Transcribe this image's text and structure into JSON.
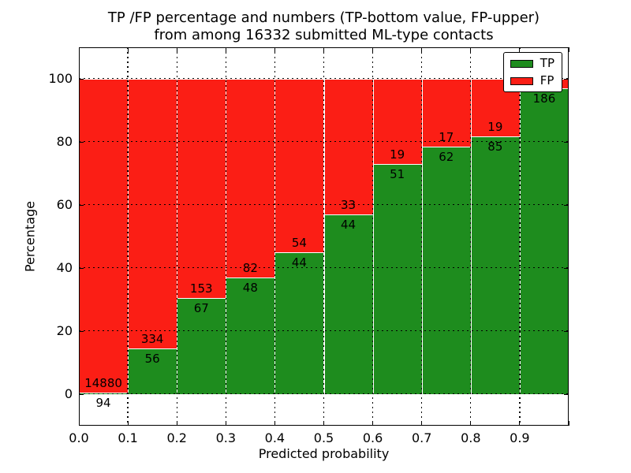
{
  "title": {
    "line1": "TP /FP percentage and numbers (TP-bottom value, FP-upper)",
    "line2": "from among 16332 submitted ML-type contacts"
  },
  "axes": {
    "xlabel": "Predicted probability",
    "ylabel": "Percentage"
  },
  "legend": {
    "items": [
      {
        "label": "TP",
        "color": "#1e8c1e"
      },
      {
        "label": "FP",
        "color": "#fb1e15"
      }
    ]
  },
  "chart_data": {
    "type": "bar",
    "stacked": true,
    "unit": "percent of bin (TP+FP = 100%)",
    "title": "TP /FP percentage and numbers (TP-bottom value, FP-upper)\nfrom among 16332 submitted ML-type contacts",
    "xlabel": "Predicted probability",
    "ylabel": "Percentage",
    "xlim": [
      0.0,
      1.0
    ],
    "ylim": [
      -10,
      110
    ],
    "grid": "dotted black, horizontal and vertical, on",
    "legend_position": "upper right",
    "bar_edge_color": "#ffffff",
    "colors": {
      "TP": "#1e8c1e",
      "FP": "#fb1e15"
    },
    "yticks": [
      "0",
      "20",
      "40",
      "60",
      "80",
      "100"
    ],
    "ytick_values": [
      0,
      20,
      40,
      60,
      80,
      100
    ],
    "xticks": [
      "0.0",
      "0.1",
      "0.2",
      "0.3",
      "0.4",
      "0.5",
      "0.6",
      "0.7",
      "0.8",
      "0.9"
    ],
    "bin_width": 0.1,
    "bars": [
      {
        "x0": 0.0,
        "x1": 0.1,
        "tp": 94,
        "fp": 14880,
        "tp_pct": 0.6,
        "tp_label": "94",
        "fp_label": "14880"
      },
      {
        "x0": 0.1,
        "x1": 0.2,
        "tp": 56,
        "fp": 334,
        "tp_pct": 14.4,
        "tp_label": "56",
        "fp_label": "334"
      },
      {
        "x0": 0.2,
        "x1": 0.3,
        "tp": 67,
        "fp": 153,
        "tp_pct": 30.5,
        "tp_label": "67",
        "fp_label": "153"
      },
      {
        "x0": 0.3,
        "x1": 0.4,
        "tp": 48,
        "fp": 82,
        "tp_pct": 36.9,
        "tp_label": "48",
        "fp_label": "82"
      },
      {
        "x0": 0.4,
        "x1": 0.5,
        "tp": 44,
        "fp": 54,
        "tp_pct": 44.9,
        "tp_label": "44",
        "fp_label": "54"
      },
      {
        "x0": 0.5,
        "x1": 0.6,
        "tp": 44,
        "fp": 33,
        "tp_pct": 57.1,
        "tp_label": "44",
        "fp_label": "33"
      },
      {
        "x0": 0.6,
        "x1": 0.7,
        "tp": 51,
        "fp": 19,
        "tp_pct": 72.9,
        "tp_label": "51",
        "fp_label": "19"
      },
      {
        "x0": 0.7,
        "x1": 0.8,
        "tp": 62,
        "fp": 17,
        "tp_pct": 78.5,
        "tp_label": "62",
        "fp_label": "17"
      },
      {
        "x0": 0.8,
        "x1": 0.9,
        "tp": 85,
        "fp": 19,
        "tp_pct": 81.7,
        "tp_label": "85",
        "fp_label": "19"
      },
      {
        "x0": 0.9,
        "x1": 1.0,
        "tp": 186,
        "fp": null,
        "tp_pct": 97.0,
        "tp_label": "186",
        "fp_label": null,
        "fp_label_hidden_behind_legend": true
      }
    ]
  }
}
